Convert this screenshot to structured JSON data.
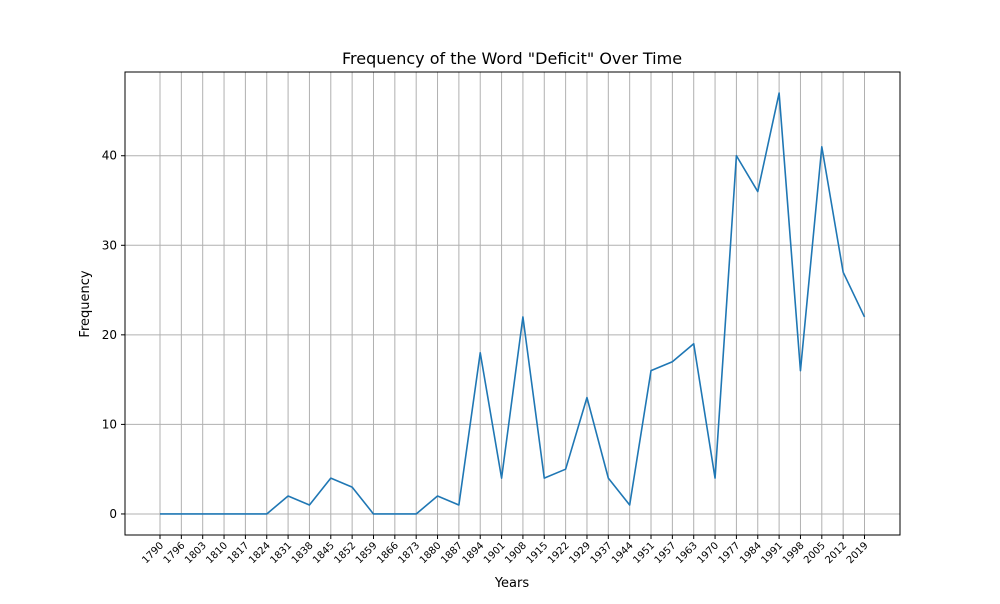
{
  "chart_data": {
    "type": "line",
    "title": "Frequency of the Word \"Deficit\" Over Time",
    "xlabel": "Years",
    "ylabel": "Frequency",
    "categories": [
      "1790",
      "1796",
      "1803",
      "1810",
      "1817",
      "1824",
      "1831",
      "1838",
      "1845",
      "1852",
      "1859",
      "1866",
      "1873",
      "1880",
      "1887",
      "1894",
      "1901",
      "1908",
      "1915",
      "1922",
      "1929",
      "1937",
      "1944",
      "1951",
      "1957",
      "1963",
      "1970",
      "1977",
      "1984",
      "1991",
      "1998",
      "2005",
      "2012",
      "2019"
    ],
    "values": [
      0,
      0,
      0,
      0,
      0,
      0,
      2,
      1,
      4,
      3,
      0,
      0,
      0,
      2,
      1,
      18,
      4,
      22,
      4,
      5,
      13,
      4,
      1,
      16,
      17,
      19,
      4,
      40,
      36,
      47,
      16,
      41,
      27,
      22
    ],
    "ylim": [
      -2.35,
      49.35
    ],
    "yticks": [
      0,
      10,
      20,
      30,
      40
    ],
    "grid": true,
    "line_color": "#1f77b4"
  }
}
